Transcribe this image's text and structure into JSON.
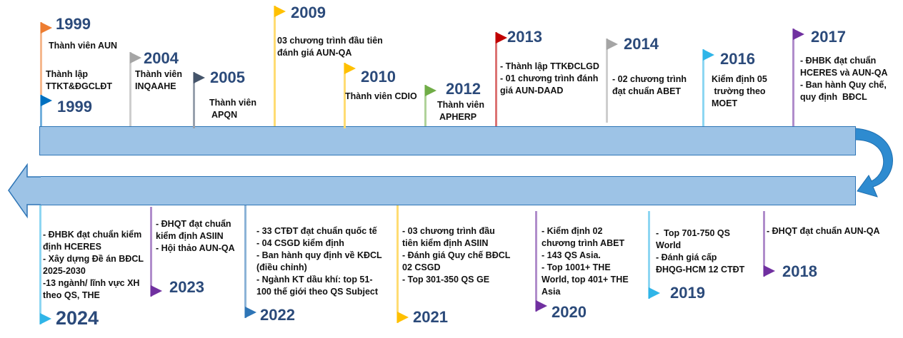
{
  "colors": {
    "bar_fill": "#9DC3E6",
    "bar_border": "#2E75B6",
    "year_text": "#2B4A7A"
  },
  "top_events": [
    {
      "year": "1999",
      "lines": [
        "Thành viên AUN"
      ],
      "color": "#ED7D31"
    },
    {
      "year": "1999",
      "lines": [
        "Thành lập",
        "TTKT&ĐGCLĐT"
      ],
      "color": "#0070C0"
    },
    {
      "year": "2004",
      "lines": [
        "Thành viên",
        "INQAAHE"
      ],
      "color": "#A5A5A5"
    },
    {
      "year": "2005",
      "lines": [
        "Thành viên",
        " APQN"
      ],
      "color": "#44546A"
    },
    {
      "year": "2009",
      "lines": [
        "03 chương trình đầu tiên",
        "đánh giá AUN-QA"
      ],
      "color": "#FFC000"
    },
    {
      "year": "2010",
      "lines": [
        "Thành viên CDIO"
      ],
      "color": "#FFC000"
    },
    {
      "year": "2012",
      "lines": [
        "Thành viên",
        " APHERP"
      ],
      "color": "#70AD47"
    },
    {
      "year": "2013",
      "lines": [
        "- Thành lập TTKĐCLGD",
        "- 01 chương trình đánh",
        "giá AUN-DAAD"
      ],
      "color": "#C00000"
    },
    {
      "year": "2014",
      "lines": [
        "- 02 chương trình",
        "đạt chuẩn ABET"
      ],
      "color": "#A5A5A5"
    },
    {
      "year": "2016",
      "lines": [
        "Kiểm định 05",
        " trường theo",
        "MOET"
      ],
      "color": "#2FB5E8"
    },
    {
      "year": "2017",
      "lines": [
        "- ĐHBK đạt chuẩn",
        "HCERES và AUN-QA",
        "- Ban hành Quy chế,",
        "quy định  BĐCL"
      ],
      "color": "#7030A0"
    }
  ],
  "bottom_events": [
    {
      "year": "2024",
      "lines": [
        "- ĐHBK đạt chuẩn kiểm",
        "định HCERES",
        "- Xây dựng Đề án BĐCL",
        "2025-2030",
        "-13 ngành/ lĩnh vực XH",
        "theo QS, THE"
      ],
      "color": "#2FB5E8"
    },
    {
      "year": "2023",
      "lines": [
        "- ĐHQT đạt chuẩn",
        "kiểm định ASIIN",
        "- Hội thảo AUN-QA"
      ],
      "color": "#7030A0"
    },
    {
      "year": "2022",
      "lines": [
        "- 33 CTĐT đạt chuẩn quốc tế",
        "- 04 CSGD kiểm định",
        "- Ban hành quy định về KĐCL",
        "(điều chỉnh)",
        "- Ngành KT dầu khí: top 51-",
        "100 thế giới theo QS Subject"
      ],
      "color": "#2E75B6"
    },
    {
      "year": "2021",
      "lines": [
        "- 03 chương trình đầu",
        "tiên kiểm định ASIIN",
        "- Đánh giá Quy chế BĐCL",
        "02 CSGD",
        "- Top 301-350 QS GE"
      ],
      "color": "#FFC000"
    },
    {
      "year": "2020",
      "lines": [
        "- Kiểm định 02",
        "chương trình ABET",
        "- 143 QS Asia.",
        "- Top 1001+ THE",
        "World, top 401+ THE",
        "Asia"
      ],
      "color": "#7030A0"
    },
    {
      "year": "2019",
      "lines": [
        "-  Top 701-750 QS",
        "World",
        "- Đánh giá cấp",
        "ĐHQG-HCM 12 CTĐT"
      ],
      "color": "#2FB5E8"
    },
    {
      "year": "2018",
      "lines": [
        "- ĐHQT đạt chuẩn AUN-QA"
      ],
      "color": "#7030A0"
    }
  ]
}
